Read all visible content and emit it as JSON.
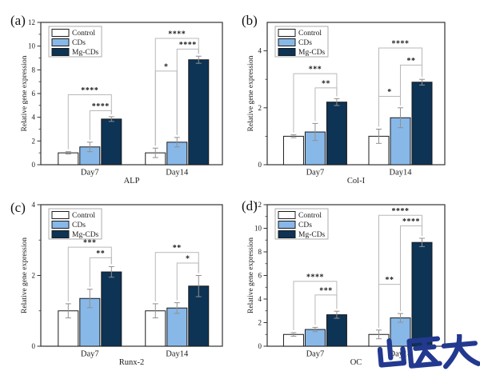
{
  "figure": {
    "ylabel": "Relative gene expression",
    "legend": [
      "Control",
      "CDs",
      "Mg-CDs"
    ],
    "watermark": {
      "text": "山医大",
      "color": "#22398f"
    }
  },
  "colors": {
    "series": [
      "#ffffff",
      "#88b8e8",
      "#0d3355"
    ],
    "bar_border": "#1c1c1c",
    "error_bar": "#909090",
    "bracket": "#b8b8b8",
    "axis": "#333333",
    "text": "#1a1a1a"
  },
  "chart_data": [
    {
      "type": "bar",
      "panel_label": "(a)",
      "gene": "ALP",
      "ylim": [
        0,
        12
      ],
      "yticks": [
        0,
        2,
        4,
        6,
        8,
        10,
        12
      ],
      "minor_step": 1,
      "groups": [
        "Day7",
        "Day14"
      ],
      "series": [
        {
          "name": "Control",
          "values": [
            1.0,
            1.0
          ],
          "errors": [
            0.1,
            0.4
          ]
        },
        {
          "name": "CDs",
          "values": [
            1.5,
            1.9
          ],
          "errors": [
            0.4,
            0.4
          ]
        },
        {
          "name": "Mg-CDs",
          "values": [
            3.85,
            8.85
          ],
          "errors": [
            0.2,
            0.3
          ]
        }
      ],
      "significance": [
        {
          "group": 0,
          "from": 0,
          "to": 2,
          "stars": "****",
          "y": 5.9
        },
        {
          "group": 0,
          "from": 1,
          "to": 2,
          "stars": "****",
          "y": 4.55
        },
        {
          "group": 1,
          "from": 0,
          "to": 1,
          "stars": "*",
          "y": 7.9
        },
        {
          "group": 1,
          "from": 0,
          "to": 2,
          "stars": "****",
          "y": 10.65
        },
        {
          "group": 1,
          "from": 1,
          "to": 2,
          "stars": "****",
          "y": 9.75
        }
      ]
    },
    {
      "type": "bar",
      "panel_label": "(b)",
      "gene": "Col-I",
      "ylim": [
        0,
        5
      ],
      "yticks": [
        0,
        2,
        4
      ],
      "minor_step": 1,
      "groups": [
        "Day7",
        "Day14"
      ],
      "series": [
        {
          "name": "Control",
          "values": [
            1.0,
            1.0
          ],
          "errors": [
            0.05,
            0.25
          ]
        },
        {
          "name": "CDs",
          "values": [
            1.15,
            1.65
          ],
          "errors": [
            0.3,
            0.35
          ]
        },
        {
          "name": "Mg-CDs",
          "values": [
            2.2,
            2.9
          ],
          "errors": [
            0.12,
            0.1
          ]
        }
      ],
      "significance": [
        {
          "group": 0,
          "from": 0,
          "to": 2,
          "stars": "***",
          "y": 3.2
        },
        {
          "group": 0,
          "from": 1,
          "to": 2,
          "stars": "**",
          "y": 2.7
        },
        {
          "group": 1,
          "from": 0,
          "to": 1,
          "stars": "*",
          "y": 2.4
        },
        {
          "group": 1,
          "from": 0,
          "to": 2,
          "stars": "****",
          "y": 4.1
        },
        {
          "group": 1,
          "from": 1,
          "to": 2,
          "stars": "**",
          "y": 3.5
        }
      ]
    },
    {
      "type": "bar",
      "panel_label": "(c)",
      "gene": "Runx-2",
      "ylim": [
        0,
        4
      ],
      "yticks": [
        0,
        2,
        4
      ],
      "minor_step": 1,
      "groups": [
        "Day7",
        "Day14"
      ],
      "series": [
        {
          "name": "Control",
          "values": [
            1.0,
            1.0
          ],
          "errors": [
            0.2,
            0.2
          ]
        },
        {
          "name": "CDs",
          "values": [
            1.35,
            1.08
          ],
          "errors": [
            0.26,
            0.15
          ]
        },
        {
          "name": "Mg-CDs",
          "values": [
            2.1,
            1.7
          ],
          "errors": [
            0.15,
            0.3
          ]
        }
      ],
      "significance": [
        {
          "group": 0,
          "from": 0,
          "to": 2,
          "stars": "***",
          "y": 2.8
        },
        {
          "group": 0,
          "from": 1,
          "to": 2,
          "stars": "**",
          "y": 2.5
        },
        {
          "group": 1,
          "from": 0,
          "to": 2,
          "stars": "**",
          "y": 2.65
        },
        {
          "group": 1,
          "from": 1,
          "to": 2,
          "stars": "*",
          "y": 2.35
        }
      ]
    },
    {
      "type": "bar",
      "panel_label": "(d)",
      "gene": "OC",
      "ylim": [
        0,
        12
      ],
      "yticks": [
        0,
        2,
        4,
        6,
        8,
        10,
        12
      ],
      "minor_step": 1,
      "groups": [
        "Day7",
        "Day14"
      ],
      "series": [
        {
          "name": "Control",
          "values": [
            1.0,
            1.0
          ],
          "errors": [
            0.15,
            0.37
          ]
        },
        {
          "name": "CDs",
          "values": [
            1.42,
            2.4
          ],
          "errors": [
            0.18,
            0.37
          ]
        },
        {
          "name": "Mg-CDs",
          "values": [
            2.67,
            8.8
          ],
          "errors": [
            0.3,
            0.35
          ]
        }
      ],
      "significance": [
        {
          "group": 0,
          "from": 0,
          "to": 2,
          "stars": "****",
          "y": 5.5
        },
        {
          "group": 0,
          "from": 1,
          "to": 2,
          "stars": "***",
          "y": 4.35
        },
        {
          "group": 1,
          "from": 0,
          "to": 1,
          "stars": "**",
          "y": 5.25
        },
        {
          "group": 1,
          "from": 0,
          "to": 2,
          "stars": "****",
          "y": 11.1
        },
        {
          "group": 1,
          "from": 1,
          "to": 2,
          "stars": "****",
          "y": 10.2
        }
      ]
    }
  ]
}
